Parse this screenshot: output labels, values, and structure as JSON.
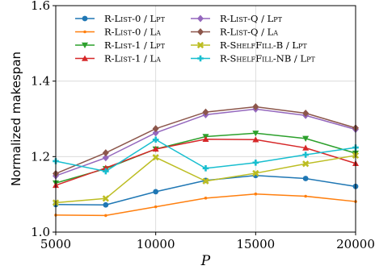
{
  "chart_data": {
    "type": "line",
    "title": "",
    "xlabel": "P",
    "ylabel": "Normalized makespan",
    "xlim": [
      5000,
      20000
    ],
    "ylim": [
      1.0,
      1.6
    ],
    "xticks": [
      5000,
      10000,
      15000,
      20000
    ],
    "xtick_labels": [
      "5000",
      "10000",
      "15000",
      "20000"
    ],
    "yticks": [
      1.0,
      1.2,
      1.4,
      1.6
    ],
    "ytick_labels": [
      "1.0",
      "1.2",
      "1.4",
      "1.6"
    ],
    "grid": true,
    "legend_position": "top",
    "x": [
      5000,
      7500,
      10000,
      12500,
      15000,
      17500,
      20000
    ],
    "series": [
      {
        "name": "R-List-0 / Lpt",
        "color": "#1f77b4",
        "marker": "circle",
        "values": [
          1.073,
          1.072,
          1.107,
          1.137,
          1.15,
          1.142,
          1.121
        ]
      },
      {
        "name": "R-List-0 / La",
        "color": "#ff7f0e",
        "marker": "point",
        "values": [
          1.045,
          1.044,
          1.067,
          1.09,
          1.101,
          1.095,
          1.081
        ]
      },
      {
        "name": "R-List-1 / Lpt",
        "color": "#2ca02c",
        "marker": "triangle-down",
        "values": [
          1.13,
          1.168,
          1.22,
          1.253,
          1.262,
          1.248,
          1.209
        ]
      },
      {
        "name": "R-List-1 / La",
        "color": "#d62728",
        "marker": "triangle-up",
        "values": [
          1.124,
          1.17,
          1.22,
          1.246,
          1.245,
          1.223,
          1.182
        ]
      },
      {
        "name": "R-List-Q / Lpt",
        "color": "#9467bd",
        "marker": "diamond",
        "values": [
          1.149,
          1.197,
          1.263,
          1.311,
          1.326,
          1.309,
          1.272
        ]
      },
      {
        "name": "R-List-Q / La",
        "color": "#8c564b",
        "marker": "diamond",
        "values": [
          1.155,
          1.21,
          1.274,
          1.318,
          1.332,
          1.315,
          1.276
        ]
      },
      {
        "name": "R-ShelfFill-B / Lpt",
        "color": "#bcbd22",
        "marker": "x-filled",
        "values": [
          1.078,
          1.089,
          1.198,
          1.135,
          1.156,
          1.181,
          1.203
        ]
      },
      {
        "name": "R-ShelfFill-NB / Lpt",
        "color": "#17becf",
        "marker": "plus-filled",
        "values": [
          1.188,
          1.161,
          1.245,
          1.169,
          1.184,
          1.205,
          1.224
        ]
      }
    ]
  }
}
